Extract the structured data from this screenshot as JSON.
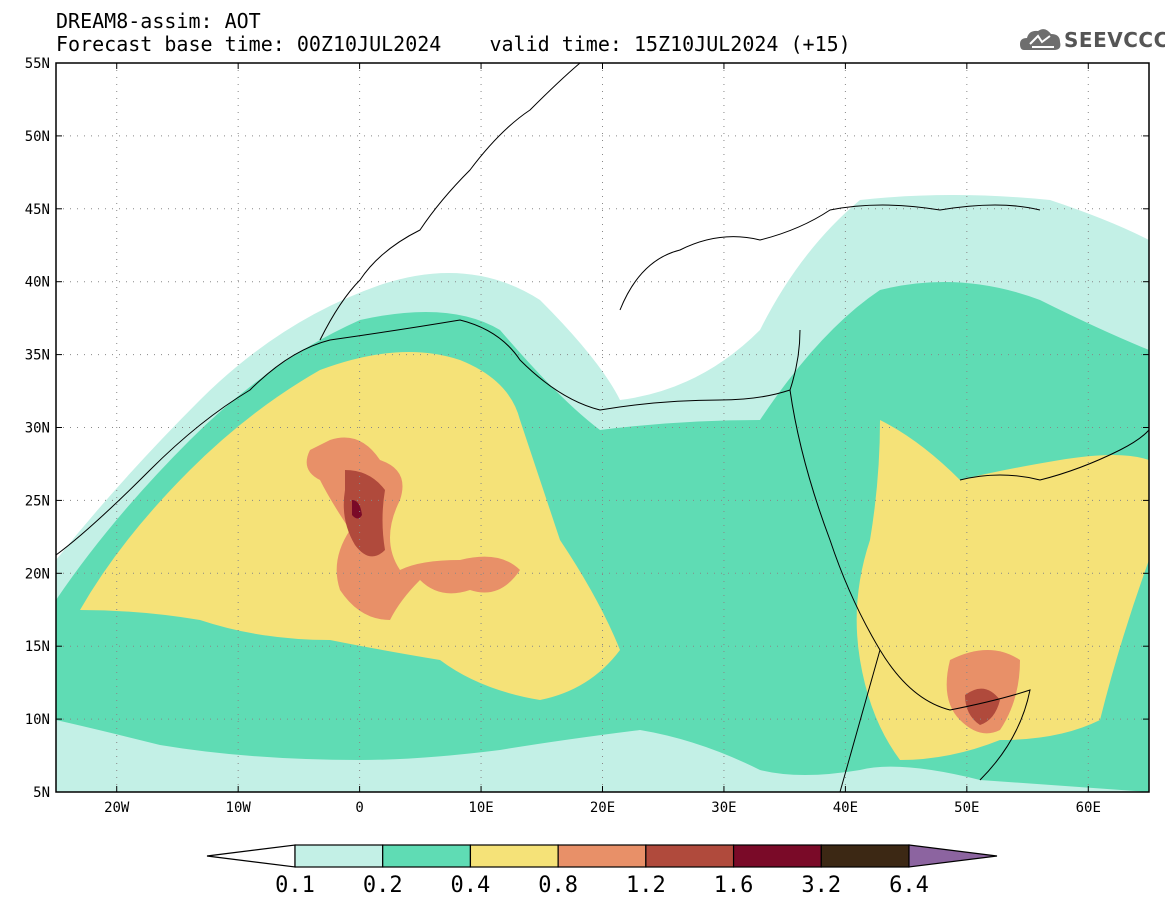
{
  "header": {
    "title_line1": "DREAM8-assim: AOT",
    "title_line2": "Forecast base time: 00Z10JUL2024    valid time: 15Z10JUL2024 (+15)",
    "logo_text": "SEEVCCC"
  },
  "map": {
    "lon_range": [
      -25,
      65
    ],
    "lat_range": [
      5,
      55
    ],
    "lat_labels": [
      {
        "lat": 55,
        "text": "55N"
      },
      {
        "lat": 50,
        "text": "50N"
      },
      {
        "lat": 45,
        "text": "45N"
      },
      {
        "lat": 40,
        "text": "40N"
      },
      {
        "lat": 35,
        "text": "35N"
      },
      {
        "lat": 30,
        "text": "30N"
      },
      {
        "lat": 25,
        "text": "25N"
      },
      {
        "lat": 20,
        "text": "20N"
      },
      {
        "lat": 15,
        "text": "15N"
      },
      {
        "lat": 10,
        "text": "10N"
      },
      {
        "lat": 5,
        "text": "5N"
      }
    ],
    "lon_labels": [
      {
        "lon": -20,
        "text": "20W"
      },
      {
        "lon": -10,
        "text": "10W"
      },
      {
        "lon": 0,
        "text": "0"
      },
      {
        "lon": 10,
        "text": "10E"
      },
      {
        "lon": 20,
        "text": "20E"
      },
      {
        "lon": 30,
        "text": "30E"
      },
      {
        "lon": 40,
        "text": "40E"
      },
      {
        "lon": 50,
        "text": "50E"
      },
      {
        "lon": 60,
        "text": "60E"
      }
    ],
    "grid": "dotted"
  },
  "colorbar": {
    "levels": [
      "0.1",
      "0.2",
      "0.4",
      "0.8",
      "1.2",
      "1.6",
      "3.2",
      "6.4"
    ],
    "colors": [
      "#ffffff",
      "#c3f0e6",
      "#5fdcb4",
      "#f5e278",
      "#e89068",
      "#b04a3c",
      "#7a0a28",
      "#3c2814",
      "#8c64a0"
    ]
  }
}
